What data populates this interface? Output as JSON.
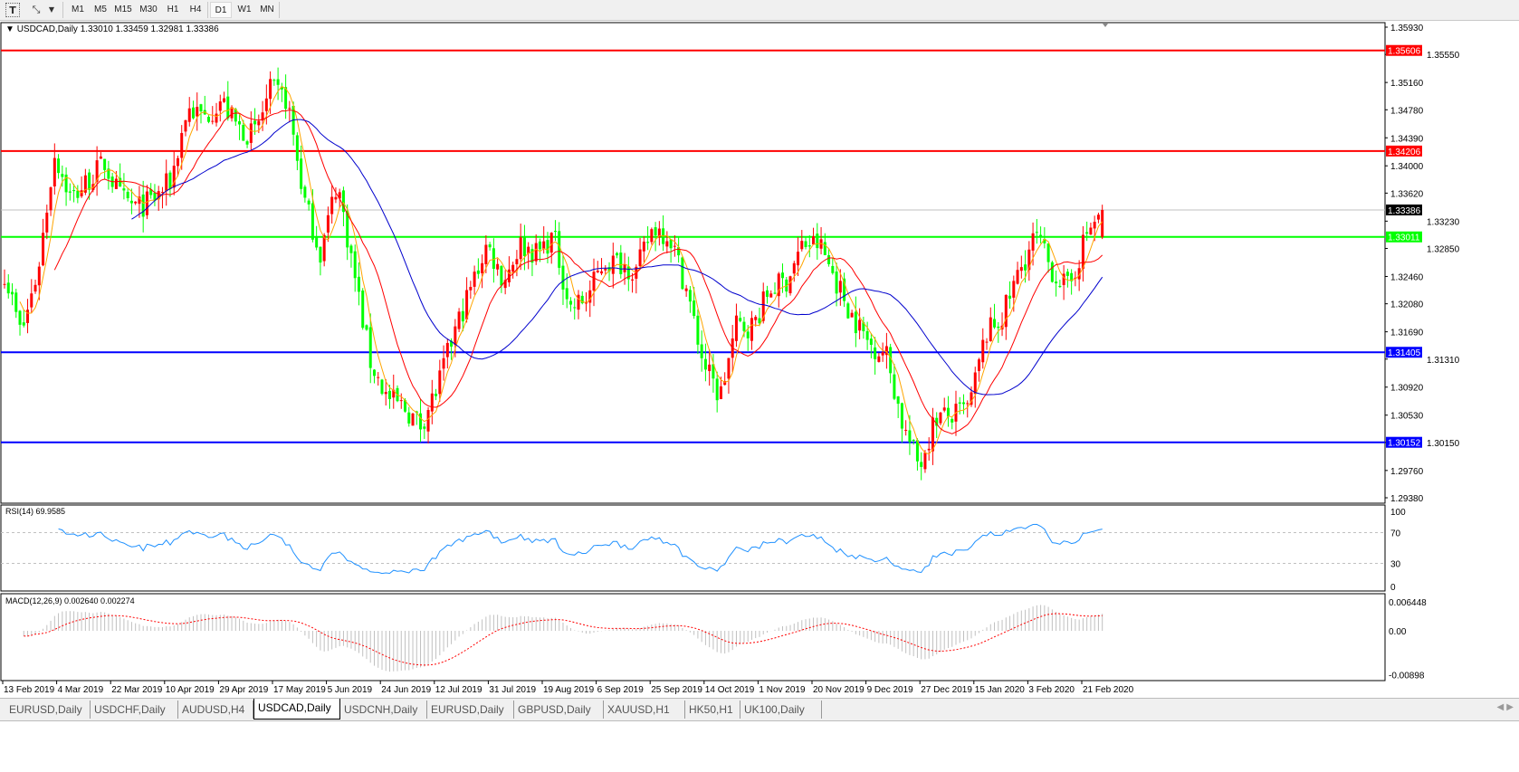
{
  "toolbar": {
    "icons": [
      "text-label-icon",
      "line-tools-icon",
      "dropdown-arrow-icon"
    ],
    "timeframes": [
      "M1",
      "M5",
      "M15",
      "M30",
      "H1",
      "H4",
      "D1",
      "W1",
      "MN"
    ],
    "active_timeframe": "D1"
  },
  "chart_header": {
    "symbol": "USDCAD,Daily",
    "ohlc": "1.33010 1.33459 1.32981 1.33386"
  },
  "price_axis": {
    "ticks": [
      "1.35930",
      "1.35550",
      "1.35160",
      "1.34780",
      "1.34390",
      "1.34000",
      "1.33620",
      "1.33230",
      "1.32850",
      "1.32460",
      "1.32080",
      "1.31690",
      "1.31310",
      "1.30920",
      "1.30530",
      "1.30150",
      "1.29760",
      "1.29380"
    ],
    "range": [
      1.2938,
      1.3593
    ]
  },
  "levels": [
    {
      "price": "1.35606",
      "color": "#ff0000"
    },
    {
      "price": "1.34206",
      "color": "#ff0000"
    },
    {
      "price": "1.33386",
      "color": "#000000",
      "line_color": "#c0c0c0"
    },
    {
      "price": "1.33011",
      "color": "#00ff00"
    },
    {
      "price": "1.31405",
      "color": "#0000ff"
    },
    {
      "price": "1.30152",
      "color": "#0000ff"
    }
  ],
  "rsi": {
    "label": "RSI(14) 69.9585",
    "ticks": [
      "100",
      "70",
      "30",
      "0"
    ]
  },
  "macd": {
    "label": "MACD(12,26,9) 0.002640 0.002274",
    "ticks": [
      "0.006448",
      "0.00",
      "-0.00898"
    ]
  },
  "date_axis": [
    "13 Feb 2019",
    "4 Mar 2019",
    "22 Mar 2019",
    "10 Apr 2019",
    "29 Apr 2019",
    "17 May 2019",
    "5 Jun 2019",
    "24 Jun 2019",
    "12 Jul 2019",
    "31 Jul 2019",
    "19 Aug 2019",
    "6 Sep 2019",
    "25 Sep 2019",
    "14 Oct 2019",
    "1 Nov 2019",
    "20 Nov 2019",
    "9 Dec 2019",
    "27 Dec 2019",
    "15 Jan 2020",
    "3 Feb 2020",
    "21 Feb 2020"
  ],
  "chart_data": {
    "type": "candlestick",
    "symbol": "USDCAD",
    "timeframe": "Daily",
    "x_range": [
      "13 Feb 2019",
      "21 Feb 2020"
    ],
    "last": {
      "open": 1.3301,
      "high": 1.33459,
      "low": 1.32981,
      "close": 1.33386
    },
    "approx_closes": [
      1.3253,
      1.3165,
      1.3253,
      1.3417,
      1.3354,
      1.3379,
      1.3404,
      1.3354,
      1.3341,
      1.3354,
      1.3379,
      1.348,
      1.3467,
      1.3492,
      1.3454,
      1.3442,
      1.3505,
      1.3492,
      1.3354,
      1.3278,
      1.3379,
      1.3253,
      1.3127,
      1.3077,
      1.3064,
      1.3039,
      1.3089,
      1.3165,
      1.3228,
      1.3291,
      1.324,
      1.3291,
      1.3278,
      1.3303,
      1.3202,
      1.3215,
      1.3266,
      1.3266,
      1.3253,
      1.3316,
      1.3303,
      1.3228,
      1.3127,
      1.3077,
      1.3177,
      1.3177,
      1.3228,
      1.324,
      1.3291,
      1.3291,
      1.324,
      1.319,
      1.3152,
      1.314,
      1.3039,
      1.2982,
      1.3051,
      1.3051,
      1.3064,
      1.3165,
      1.319,
      1.3253,
      1.3303,
      1.3253,
      1.3228,
      1.3303,
      1.3339
    ],
    "up_color": "#ff0000",
    "down_color": "#00ff00",
    "moving_average_colors": [
      "#ffa500",
      "#ff0000",
      "#0000cd"
    ],
    "rsi_color": "#1e90ff",
    "macd_histogram_color": "#c0c0c0",
    "macd_signal_color": "#ff0000",
    "grid": false
  },
  "tabs": [
    {
      "label": "EURUSD,Daily"
    },
    {
      "label": "USDCHF,Daily"
    },
    {
      "label": "AUDUSD,H4"
    },
    {
      "label": "USDCAD,Daily",
      "active": true
    },
    {
      "label": "USDCNH,Daily"
    },
    {
      "label": "EURUSD,Daily"
    },
    {
      "label": "GBPUSD,Daily"
    },
    {
      "label": "XAUUSD,H1"
    },
    {
      "label": "HK50,H1"
    },
    {
      "label": "UK100,Daily"
    }
  ]
}
